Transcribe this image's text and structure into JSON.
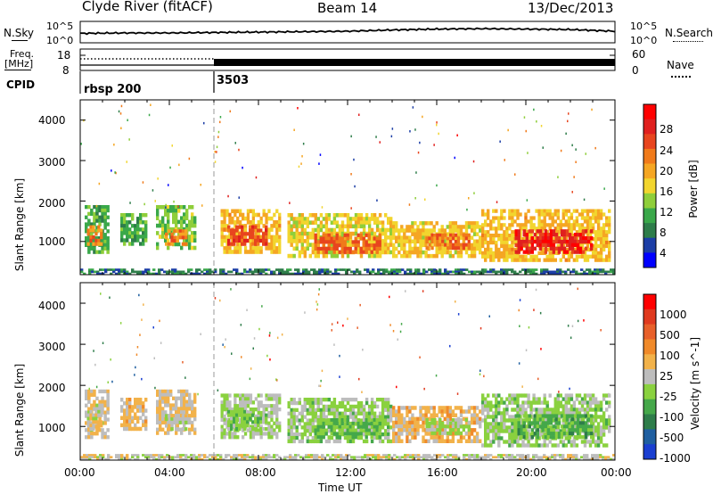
{
  "header": {
    "station": "Clyde River (fitACF)",
    "beam": "Beam 14",
    "date": "13/Dec/2013"
  },
  "noise_panel": {
    "left_label": "N.Sky",
    "right_label": "N.Search",
    "left_top": "10^5",
    "left_bottom": "10^0",
    "right_top": "10^5",
    "right_bottom": "10^0"
  },
  "freq_panel": {
    "left_label_line1": "Freq.",
    "left_label_line2": "[MHz]",
    "left_top": "18",
    "left_bottom": "8",
    "right_top": "60",
    "right_bottom": "0",
    "right_label": "Nave"
  },
  "cpid_panel": {
    "label": "CPID",
    "segments": [
      {
        "label": "rbsp 200",
        "start_hour": 0
      },
      {
        "label": "3503",
        "start_hour": 6
      }
    ]
  },
  "time_axis": {
    "xlabel": "Time UT",
    "ticks": [
      "00:00",
      "04:00",
      "08:00",
      "12:00",
      "16:00",
      "20:00",
      "00:00"
    ]
  },
  "power_panel": {
    "ylabel": "Slant Range [km]",
    "yticks": [
      "4000",
      "3000",
      "2000",
      "1000"
    ],
    "colorbar_label": "Power [dB]",
    "colorbar_ticks": [
      "28",
      "24",
      "20",
      "16",
      "12",
      "8",
      "4"
    ],
    "colorbar_colors": [
      "#0000ff",
      "#1c3ea6",
      "#2e7d4a",
      "#3aa84a",
      "#8fce3a",
      "#f2d52e",
      "#f5a623",
      "#f07a1a",
      "#e8451e",
      "#e0201f",
      "#ff0000"
    ]
  },
  "velocity_panel": {
    "ylabel": "Slant Range [km]",
    "yticks": [
      "4000",
      "3000",
      "2000",
      "1000"
    ],
    "colorbar_label": "Velocity [m s^-1]",
    "colorbar_ticks": [
      "1000",
      "500",
      "100",
      "25",
      "-25",
      "-100",
      "-500",
      "-1000"
    ],
    "colorbar_colors": [
      "#1a3fd1",
      "#1f5fa0",
      "#2e7d4a",
      "#45a84a",
      "#8ad13f",
      "#bdbdbd",
      "#f2b24a",
      "#f08a2a",
      "#e8602a",
      "#e03a1f",
      "#ff0000"
    ]
  },
  "chart_data": [
    {
      "type": "line",
      "title": "N.Sky / N.Search",
      "x": [
        0,
        2,
        4,
        6,
        8,
        10,
        12,
        14,
        16,
        18,
        20,
        22,
        24
      ],
      "series": [
        {
          "name": "N.Sky",
          "values": [
            2.2,
            2.3,
            2.3,
            2.4,
            2.5,
            2.6,
            2.7,
            3.0,
            3.2,
            3.3,
            3.2,
            3.1,
            2.7
          ]
        }
      ],
      "xlabel": "Time UT",
      "ylabel": "",
      "ylim": [
        0,
        5
      ]
    },
    {
      "type": "line",
      "title": "Freq. / Nave",
      "x": [
        0,
        6,
        6.05,
        24
      ],
      "series": [
        {
          "name": "Freq.",
          "values": [
            10.5,
            10.5,
            10.5,
            10.5
          ]
        },
        {
          "name": "Nave",
          "values": [
            30,
            30,
            20,
            20
          ]
        }
      ],
      "xlabel": "Time UT",
      "ylabel": "",
      "ylim": [
        8,
        18
      ]
    },
    {
      "type": "heatmap",
      "title": "Power",
      "xlabel": "Time UT",
      "ylabel": "Slant Range [km]",
      "xlim": [
        0,
        24
      ],
      "ylim": [
        180,
        4500
      ],
      "value_label": "Power [dB]",
      "zlim": [
        0,
        32
      ],
      "regions": [
        {
          "t0": 0.2,
          "t1": 1.3,
          "r0": 700,
          "r1": 1900,
          "v": 10
        },
        {
          "t0": 0.3,
          "t1": 1.0,
          "r0": 900,
          "r1": 1400,
          "v": 22
        },
        {
          "t0": 1.8,
          "t1": 3.0,
          "r0": 900,
          "r1": 1700,
          "v": 10
        },
        {
          "t0": 3.4,
          "t1": 5.2,
          "r0": 800,
          "r1": 1900,
          "v": 12
        },
        {
          "t0": 3.8,
          "t1": 4.8,
          "r0": 900,
          "r1": 1300,
          "v": 22
        },
        {
          "t0": 6.3,
          "t1": 9.0,
          "r0": 700,
          "r1": 1800,
          "v": 18
        },
        {
          "t0": 6.6,
          "t1": 8.4,
          "r0": 900,
          "r1": 1400,
          "v": 26
        },
        {
          "t0": 9.3,
          "t1": 14.0,
          "r0": 600,
          "r1": 1700,
          "v": 16
        },
        {
          "t0": 10.5,
          "t1": 13.5,
          "r0": 700,
          "r1": 1200,
          "v": 24
        },
        {
          "t0": 14.0,
          "t1": 18.0,
          "r0": 600,
          "r1": 1500,
          "v": 17
        },
        {
          "t0": 15.5,
          "t1": 17.5,
          "r0": 800,
          "r1": 1200,
          "v": 23
        },
        {
          "t0": 18.0,
          "t1": 23.8,
          "r0": 500,
          "r1": 1800,
          "v": 18
        },
        {
          "t0": 19.5,
          "t1": 23.0,
          "r0": 700,
          "r1": 1300,
          "v": 29
        },
        {
          "t0": 0.0,
          "t1": 24.0,
          "r0": 180,
          "r1": 330,
          "v": 6
        }
      ]
    },
    {
      "type": "heatmap",
      "title": "Velocity",
      "xlabel": "Time UT",
      "ylabel": "Slant Range [km]",
      "xlim": [
        0,
        24
      ],
      "ylim": [
        180,
        4500
      ],
      "value_label": "Velocity [m s^-1]",
      "zlim": [
        -1000,
        1000
      ],
      "regions": [
        {
          "t0": 0.2,
          "t1": 1.3,
          "r0": 700,
          "r1": 1900,
          "v": 60
        },
        {
          "t0": 0.3,
          "t1": 1.0,
          "r0": 900,
          "r1": 1400,
          "v": 0
        },
        {
          "t0": 1.8,
          "t1": 3.0,
          "r0": 900,
          "r1": 1700,
          "v": 150
        },
        {
          "t0": 3.4,
          "t1": 5.2,
          "r0": 800,
          "r1": 1900,
          "v": 80
        },
        {
          "t0": 3.8,
          "t1": 4.8,
          "r0": 900,
          "r1": 1300,
          "v": 0
        },
        {
          "t0": 6.3,
          "t1": 9.0,
          "r0": 700,
          "r1": 1800,
          "v": -80
        },
        {
          "t0": 6.6,
          "t1": 8.4,
          "r0": 900,
          "r1": 1400,
          "v": -200
        },
        {
          "t0": 9.3,
          "t1": 14.0,
          "r0": 600,
          "r1": 1700,
          "v": -150
        },
        {
          "t0": 10.5,
          "t1": 13.5,
          "r0": 700,
          "r1": 1200,
          "v": -300
        },
        {
          "t0": 14.0,
          "t1": 18.0,
          "r0": 600,
          "r1": 1500,
          "v": 200
        },
        {
          "t0": 15.5,
          "t1": 17.5,
          "r0": 800,
          "r1": 1200,
          "v": -120
        },
        {
          "t0": 18.0,
          "t1": 23.8,
          "r0": 500,
          "r1": 1800,
          "v": -150
        },
        {
          "t0": 19.5,
          "t1": 23.0,
          "r0": 700,
          "r1": 1300,
          "v": -350
        },
        {
          "t0": 0.0,
          "t1": 24.0,
          "r0": 180,
          "r1": 330,
          "v": 0
        }
      ]
    }
  ]
}
